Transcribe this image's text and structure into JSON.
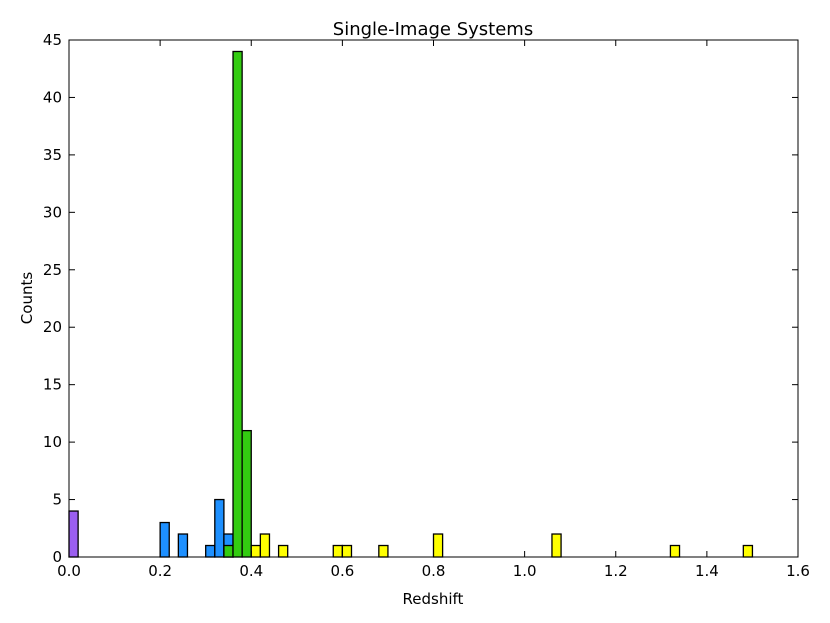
{
  "chart_data": {
    "type": "histogram",
    "title": "Single-Image Systems",
    "xlabel": "Redshift",
    "ylabel": "Counts",
    "bins": [
      0,
      0.02,
      0.04,
      0.06,
      0.08,
      0.1,
      0.12,
      0.14,
      0.16,
      0.18,
      0.2,
      0.22,
      0.24,
      0.26,
      0.28,
      0.3,
      0.32,
      0.34,
      0.36,
      0.38,
      0.4,
      0.42,
      0.44,
      0.46,
      0.48,
      0.5,
      0.52,
      0.54,
      0.56,
      0.58,
      0.6,
      0.62,
      0.64,
      0.66,
      0.68,
      0.7,
      0.72,
      0.74,
      0.76,
      0.78,
      0.8,
      0.82,
      0.84,
      0.86,
      0.88,
      0.9,
      0.92,
      0.94,
      0.96,
      0.98,
      1,
      1.02,
      1.04,
      1.06,
      1.08,
      1.1,
      1.12,
      1.14,
      1.16,
      1.18,
      1.2,
      1.22,
      1.24,
      1.26,
      1.28,
      1.3,
      1.32,
      1.34,
      1.36,
      1.38,
      1.4,
      1.42,
      1.44,
      1.46,
      1.48,
      1.5,
      1.52,
      1.54,
      1.56,
      1.58,
      1.6
    ],
    "series": [
      {
        "color": "#9b5ff0",
        "values": [
          4,
          0,
          0,
          0,
          0,
          0,
          0,
          0,
          0,
          0,
          0,
          0,
          0,
          0,
          0,
          0,
          0,
          0,
          0,
          0,
          0,
          0,
          0,
          0,
          0,
          0,
          0,
          0,
          0,
          0,
          0,
          0,
          0,
          0,
          0,
          0,
          0,
          0,
          0,
          0,
          0,
          0,
          0,
          0,
          0,
          0,
          0,
          0,
          0,
          0,
          0,
          0,
          0,
          0,
          0,
          0,
          0,
          0,
          0,
          0,
          0,
          0,
          0,
          0,
          0,
          0,
          0,
          0,
          0,
          0,
          0,
          0,
          0,
          0,
          0,
          0,
          0,
          0,
          0,
          0
        ]
      },
      {
        "color": "#1e90ff",
        "values": [
          0,
          0,
          0,
          0,
          0,
          0,
          0,
          0,
          0,
          0,
          3,
          0,
          2,
          0,
          0,
          1,
          5,
          2,
          0,
          0,
          0,
          0,
          0,
          0,
          0,
          0,
          0,
          0,
          0,
          0,
          0,
          0,
          0,
          0,
          0,
          0,
          0,
          0,
          0,
          0,
          0,
          0,
          0,
          0,
          0,
          0,
          0,
          0,
          0,
          0,
          0,
          0,
          0,
          0,
          0,
          0,
          0,
          0,
          0,
          0,
          0,
          0,
          0,
          0,
          0,
          0,
          0,
          0,
          0,
          0,
          0,
          0,
          0,
          0,
          0,
          0,
          0,
          0,
          0,
          0
        ]
      },
      {
        "color": "#33cc11",
        "values": [
          0,
          0,
          0,
          0,
          0,
          0,
          0,
          0,
          0,
          0,
          0,
          0,
          0,
          0,
          0,
          0,
          0,
          1,
          44,
          11,
          0,
          0,
          0,
          0,
          0,
          0,
          0,
          0,
          0,
          0,
          0,
          0,
          0,
          0,
          0,
          0,
          0,
          0,
          0,
          0,
          0,
          0,
          0,
          0,
          0,
          0,
          0,
          0,
          0,
          0,
          0,
          0,
          0,
          0,
          0,
          0,
          0,
          0,
          0,
          0,
          0,
          0,
          0,
          0,
          0,
          0,
          0,
          0,
          0,
          0,
          0,
          0,
          0,
          0,
          0,
          0,
          0,
          0,
          0,
          0
        ]
      },
      {
        "color": "#ffff00",
        "values": [
          0,
          0,
          0,
          0,
          0,
          0,
          0,
          0,
          0,
          0,
          0,
          0,
          0,
          0,
          0,
          0,
          0,
          0,
          0,
          0,
          1,
          2,
          0,
          1,
          0,
          0,
          0,
          0,
          0,
          1,
          1,
          0,
          0,
          0,
          1,
          0,
          0,
          0,
          0,
          0,
          2,
          0,
          0,
          0,
          0,
          0,
          0,
          0,
          0,
          0,
          0,
          0,
          0,
          2,
          0,
          0,
          0,
          0,
          0,
          0,
          0,
          0,
          0,
          0,
          0,
          0,
          1,
          0,
          0,
          0,
          0,
          0,
          0,
          0,
          1,
          0,
          0,
          0,
          0,
          0
        ]
      }
    ],
    "xlim": [
      0,
      1.6
    ],
    "ylim": [
      0,
      45
    ],
    "xticks": [
      {
        "value": 0,
        "label": "0.0"
      },
      0.2,
      0.4,
      0.6,
      0.8,
      {
        "value": 1,
        "label": "1.0"
      },
      1.2,
      1.4,
      1.6
    ],
    "yticks": [
      0,
      5,
      10,
      15,
      20,
      25,
      30,
      35,
      40,
      45
    ]
  }
}
